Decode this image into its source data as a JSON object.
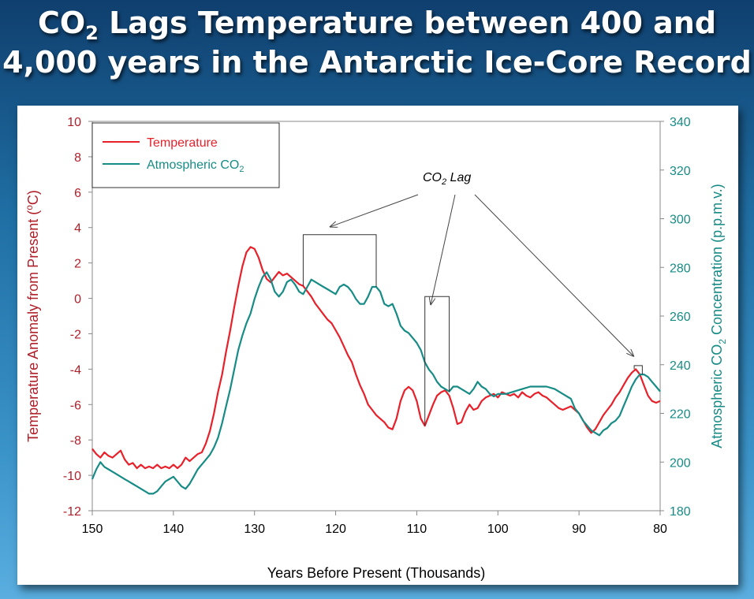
{
  "title": {
    "line1_pre": "CO",
    "line1_sub": "2",
    "line1_post": " Lags Temperature between 400 and",
    "line2": "4,000 years in the Antarctic Ice-Core Record"
  },
  "colors": {
    "temperature": "#e8202a",
    "co2": "#178c86",
    "left_axis": "#b0202a",
    "annotation": "#404040"
  },
  "chart_data": {
    "type": "line",
    "xlabel": "Years Before Present (Thousands)",
    "ylabel_left": {
      "pre": "Temperature Anomaly from Present (",
      "sup": "o",
      "post": "C)"
    },
    "ylabel_right": {
      "pre": "Atmospheric CO",
      "sub": "2",
      "post": " Concentration (p.p.m.v.)"
    },
    "xlim": [
      150,
      80
    ],
    "ylim_left": [
      -12,
      10
    ],
    "ylim_right": [
      180,
      340
    ],
    "x_ticks": [
      150,
      140,
      130,
      120,
      110,
      100,
      90,
      80
    ],
    "y_ticks_left": [
      10,
      8,
      6,
      4,
      2,
      0,
      -2,
      -4,
      -6,
      -8,
      -10,
      -12
    ],
    "y_ticks_right": [
      340,
      320,
      300,
      280,
      260,
      240,
      220,
      200,
      180
    ],
    "legend": {
      "temperature": "Temperature",
      "co2_pre": "Atmospheric CO",
      "co2_sub": "2"
    },
    "annotation": {
      "pre": "CO",
      "sub": "2",
      "post": " Lag"
    },
    "lag_intervals": [
      {
        "from": 124,
        "to": 115,
        "y": 3.6
      },
      {
        "from": 109,
        "to": 106,
        "y": 0.1
      },
      {
        "from": 83.2,
        "to": 82.2,
        "y": -3.8
      }
    ],
    "series": [
      {
        "name": "Temperature",
        "axis": "left",
        "points": [
          [
            150,
            -8.5
          ],
          [
            149.5,
            -8.8
          ],
          [
            149,
            -9.0
          ],
          [
            148.5,
            -8.7
          ],
          [
            148,
            -8.9
          ],
          [
            147.5,
            -9.0
          ],
          [
            147,
            -8.8
          ],
          [
            146.5,
            -8.6
          ],
          [
            146,
            -9.1
          ],
          [
            145.5,
            -9.4
          ],
          [
            145,
            -9.3
          ],
          [
            144.5,
            -9.6
          ],
          [
            144,
            -9.4
          ],
          [
            143.5,
            -9.6
          ],
          [
            143,
            -9.5
          ],
          [
            142.5,
            -9.6
          ],
          [
            142,
            -9.4
          ],
          [
            141.5,
            -9.6
          ],
          [
            141,
            -9.5
          ],
          [
            140.5,
            -9.6
          ],
          [
            140,
            -9.4
          ],
          [
            139.5,
            -9.6
          ],
          [
            139,
            -9.4
          ],
          [
            138.5,
            -9.0
          ],
          [
            138,
            -9.2
          ],
          [
            137.5,
            -9.0
          ],
          [
            137,
            -8.8
          ],
          [
            136.5,
            -8.7
          ],
          [
            136,
            -8.2
          ],
          [
            135.5,
            -7.5
          ],
          [
            135,
            -6.5
          ],
          [
            134.5,
            -5.3
          ],
          [
            134,
            -4.3
          ],
          [
            133.5,
            -3.0
          ],
          [
            133,
            -1.8
          ],
          [
            132.5,
            -0.5
          ],
          [
            132,
            0.7
          ],
          [
            131.5,
            1.8
          ],
          [
            131,
            2.6
          ],
          [
            130.5,
            2.9
          ],
          [
            130,
            2.8
          ],
          [
            129.5,
            2.3
          ],
          [
            129,
            1.6
          ],
          [
            128.5,
            1.1
          ],
          [
            128,
            0.9
          ],
          [
            127.5,
            1.2
          ],
          [
            127,
            1.5
          ],
          [
            126.5,
            1.3
          ],
          [
            126,
            1.4
          ],
          [
            125.5,
            1.2
          ],
          [
            125,
            1.0
          ],
          [
            124.5,
            0.8
          ],
          [
            124,
            0.7
          ],
          [
            123.5,
            0.4
          ],
          [
            123,
            0.1
          ],
          [
            122.5,
            -0.3
          ],
          [
            122,
            -0.6
          ],
          [
            121.5,
            -0.9
          ],
          [
            121,
            -1.2
          ],
          [
            120.5,
            -1.4
          ],
          [
            120,
            -1.8
          ],
          [
            119.5,
            -2.2
          ],
          [
            119,
            -2.7
          ],
          [
            118.5,
            -3.2
          ],
          [
            118,
            -3.6
          ],
          [
            117.5,
            -4.3
          ],
          [
            117,
            -4.9
          ],
          [
            116.5,
            -5.4
          ],
          [
            116,
            -6.0
          ],
          [
            115.5,
            -6.3
          ],
          [
            115,
            -6.6
          ],
          [
            114.5,
            -6.8
          ],
          [
            114,
            -7.0
          ],
          [
            113.5,
            -7.3
          ],
          [
            113,
            -7.4
          ],
          [
            112.5,
            -6.8
          ],
          [
            112,
            -5.8
          ],
          [
            111.5,
            -5.2
          ],
          [
            111,
            -5.0
          ],
          [
            110.5,
            -5.2
          ],
          [
            110,
            -5.8
          ],
          [
            109.5,
            -6.8
          ],
          [
            109,
            -7.2
          ],
          [
            108.5,
            -6.6
          ],
          [
            108,
            -6.0
          ],
          [
            107.5,
            -5.5
          ],
          [
            107,
            -5.3
          ],
          [
            106.5,
            -5.2
          ],
          [
            106,
            -5.5
          ],
          [
            105.5,
            -6.2
          ],
          [
            105,
            -7.1
          ],
          [
            104.5,
            -7.0
          ],
          [
            104,
            -6.4
          ],
          [
            103.5,
            -6.0
          ],
          [
            103,
            -6.3
          ],
          [
            102.5,
            -6.2
          ],
          [
            102,
            -5.8
          ],
          [
            101.5,
            -5.6
          ],
          [
            101,
            -5.5
          ],
          [
            100.5,
            -5.4
          ],
          [
            100,
            -5.6
          ],
          [
            99.5,
            -5.3
          ],
          [
            99,
            -5.4
          ],
          [
            98.5,
            -5.5
          ],
          [
            98,
            -5.4
          ],
          [
            97.5,
            -5.6
          ],
          [
            97,
            -5.3
          ],
          [
            96.5,
            -5.5
          ],
          [
            96,
            -5.6
          ],
          [
            95.5,
            -5.4
          ],
          [
            95,
            -5.3
          ],
          [
            94.5,
            -5.5
          ],
          [
            94,
            -5.6
          ],
          [
            93.5,
            -5.8
          ],
          [
            93,
            -6.0
          ],
          [
            92.5,
            -6.2
          ],
          [
            92,
            -6.3
          ],
          [
            91.5,
            -6.2
          ],
          [
            91,
            -6.1
          ],
          [
            90.5,
            -6.3
          ],
          [
            90,
            -6.5
          ],
          [
            89.5,
            -6.9
          ],
          [
            89,
            -7.3
          ],
          [
            88.5,
            -7.6
          ],
          [
            88,
            -7.4
          ],
          [
            87.5,
            -7.0
          ],
          [
            87,
            -6.6
          ],
          [
            86.5,
            -6.3
          ],
          [
            86,
            -6.0
          ],
          [
            85.5,
            -5.6
          ],
          [
            85,
            -5.3
          ],
          [
            84.5,
            -4.9
          ],
          [
            84,
            -4.5
          ],
          [
            83.5,
            -4.2
          ],
          [
            83,
            -4.0
          ],
          [
            82.5,
            -4.3
          ],
          [
            82,
            -4.9
          ],
          [
            81.5,
            -5.5
          ],
          [
            81,
            -5.8
          ],
          [
            80.5,
            -5.9
          ],
          [
            80,
            -5.8
          ]
        ]
      },
      {
        "name": "Atmospheric CO2",
        "axis": "right",
        "points": [
          [
            150,
            193
          ],
          [
            149.5,
            197
          ],
          [
            149,
            200
          ],
          [
            148.5,
            198
          ],
          [
            148,
            197
          ],
          [
            147.5,
            196
          ],
          [
            147,
            195
          ],
          [
            146.5,
            194
          ],
          [
            146,
            193
          ],
          [
            145.5,
            192
          ],
          [
            145,
            191
          ],
          [
            144.5,
            190
          ],
          [
            144,
            189
          ],
          [
            143.5,
            188
          ],
          [
            143,
            187
          ],
          [
            142.5,
            187
          ],
          [
            142,
            188
          ],
          [
            141.5,
            190
          ],
          [
            141,
            192
          ],
          [
            140.5,
            193
          ],
          [
            140,
            194
          ],
          [
            139.5,
            192
          ],
          [
            139,
            190
          ],
          [
            138.5,
            189
          ],
          [
            138,
            191
          ],
          [
            137.5,
            194
          ],
          [
            137,
            197
          ],
          [
            136.5,
            199
          ],
          [
            136,
            201
          ],
          [
            135.5,
            203
          ],
          [
            135,
            206
          ],
          [
            134.5,
            210
          ],
          [
            134,
            216
          ],
          [
            133.5,
            223
          ],
          [
            133,
            230
          ],
          [
            132.5,
            238
          ],
          [
            132,
            246
          ],
          [
            131.5,
            252
          ],
          [
            131,
            257
          ],
          [
            130.5,
            261
          ],
          [
            130,
            267
          ],
          [
            129.5,
            272
          ],
          [
            129,
            276
          ],
          [
            128.5,
            278
          ],
          [
            128,
            275
          ],
          [
            127.5,
            270
          ],
          [
            127,
            268
          ],
          [
            126.5,
            270
          ],
          [
            126,
            274
          ],
          [
            125.5,
            275
          ],
          [
            125,
            273
          ],
          [
            124.5,
            270
          ],
          [
            124,
            269
          ],
          [
            123.5,
            272
          ],
          [
            123,
            275
          ],
          [
            122.5,
            274
          ],
          [
            122,
            273
          ],
          [
            121.5,
            272
          ],
          [
            121,
            271
          ],
          [
            120.5,
            270
          ],
          [
            120,
            269
          ],
          [
            119.5,
            272
          ],
          [
            119,
            273
          ],
          [
            118.5,
            272
          ],
          [
            118,
            270
          ],
          [
            117.5,
            267
          ],
          [
            117,
            265
          ],
          [
            116.5,
            265
          ],
          [
            116,
            268
          ],
          [
            115.5,
            272
          ],
          [
            115,
            272
          ],
          [
            114.5,
            270
          ],
          [
            114,
            265
          ],
          [
            113.5,
            264
          ],
          [
            113,
            265
          ],
          [
            112.5,
            261
          ],
          [
            112,
            256
          ],
          [
            111.5,
            254
          ],
          [
            111,
            253
          ],
          [
            110.5,
            251
          ],
          [
            110,
            249
          ],
          [
            109.5,
            246
          ],
          [
            109,
            241
          ],
          [
            108.5,
            238
          ],
          [
            108,
            236
          ],
          [
            107.5,
            233
          ],
          [
            107,
            231
          ],
          [
            106.5,
            230
          ],
          [
            106,
            229
          ],
          [
            105.5,
            231
          ],
          [
            105,
            231
          ],
          [
            104.5,
            230
          ],
          [
            104,
            229
          ],
          [
            103.5,
            228
          ],
          [
            103,
            230
          ],
          [
            102.5,
            233
          ],
          [
            102,
            231
          ],
          [
            101.5,
            230
          ],
          [
            101,
            228
          ],
          [
            100.5,
            227
          ],
          [
            100,
            228
          ],
          [
            99,
            228
          ],
          [
            98,
            229
          ],
          [
            97,
            230
          ],
          [
            96,
            231
          ],
          [
            95,
            231
          ],
          [
            94,
            231
          ],
          [
            93,
            230
          ],
          [
            92,
            228
          ],
          [
            91,
            226
          ],
          [
            90.5,
            222
          ],
          [
            90,
            220
          ],
          [
            89.5,
            217
          ],
          [
            89,
            215
          ],
          [
            88.5,
            213
          ],
          [
            88,
            212
          ],
          [
            87.5,
            211
          ],
          [
            87,
            213
          ],
          [
            86.5,
            214
          ],
          [
            86,
            216
          ],
          [
            85.5,
            217
          ],
          [
            85,
            219
          ],
          [
            84.5,
            223
          ],
          [
            84,
            227
          ],
          [
            83.5,
            231
          ],
          [
            83,
            234
          ],
          [
            82.5,
            236
          ],
          [
            82,
            236
          ],
          [
            81.5,
            235
          ],
          [
            81,
            233
          ],
          [
            80.5,
            231
          ],
          [
            80,
            229
          ]
        ]
      }
    ]
  }
}
